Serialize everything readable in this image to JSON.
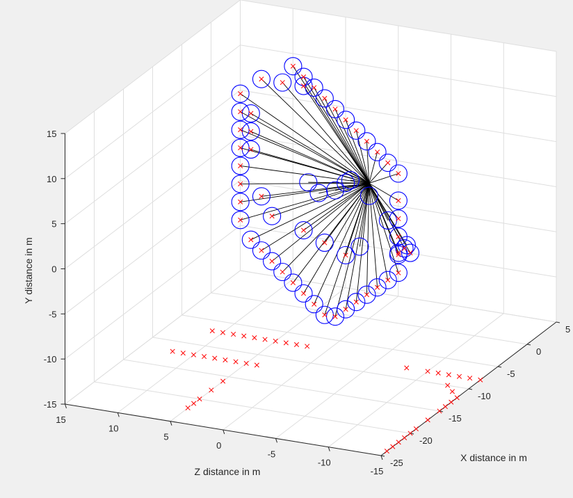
{
  "chart_data": {
    "type": "scatter",
    "title": "",
    "xlabel": "X distance in m",
    "ylabel": "Y distance in m",
    "zlabel": "Z distance in m",
    "xlim": [
      -25,
      5
    ],
    "ylim": [
      -15,
      15
    ],
    "zlim": [
      -15,
      15
    ],
    "xticks": [
      -25,
      -20,
      -15,
      -10,
      -5,
      0,
      5
    ],
    "yticks": [
      -15,
      -10,
      -5,
      0,
      5,
      10,
      15
    ],
    "zticks": [
      -15,
      -10,
      -5,
      0,
      5,
      10,
      15
    ],
    "xtick_labels": [
      "-25",
      "-20",
      "-15",
      "-10",
      "-5",
      "0",
      "5"
    ],
    "ytick_labels": [
      "-15",
      "-10",
      "-5",
      "0",
      "5",
      "10",
      "15"
    ],
    "ztick_labels": [
      "-15",
      "-10",
      "-5",
      "0",
      "5",
      "10",
      "15"
    ],
    "grid": true,
    "center": [
      0,
      0,
      0
    ],
    "colors": {
      "background": "#f0f0f0",
      "axes_bg": "#ffffff",
      "circles": "#0000ff",
      "crosses": "#ff0000",
      "lines": "#000000"
    },
    "series": [
      {
        "marker": "circle",
        "color": "#0000ff",
        "points": [
          [
            -4,
            14,
            5
          ],
          [
            -4,
            13,
            4
          ],
          [
            -4,
            12,
            3
          ],
          [
            -4,
            11,
            2
          ],
          [
            -4,
            10,
            1
          ],
          [
            -4,
            9,
            0
          ],
          [
            -4,
            8,
            -1
          ],
          [
            -4,
            7,
            -2
          ],
          [
            -4,
            6,
            -3
          ],
          [
            -4,
            5,
            -4
          ],
          [
            -4,
            4,
            -5
          ],
          [
            -4,
            12,
            8
          ],
          [
            -4,
            12,
            6
          ],
          [
            -4,
            12,
            4
          ],
          [
            -4,
            10,
            10
          ],
          [
            -4,
            8,
            10
          ],
          [
            -4,
            6,
            10
          ],
          [
            -4,
            4,
            10
          ],
          [
            -4,
            2,
            10
          ],
          [
            -4,
            0,
            10
          ],
          [
            -4,
            -2,
            10
          ],
          [
            -4,
            8,
            9
          ],
          [
            -4,
            6,
            9
          ],
          [
            -4,
            4,
            9
          ],
          [
            -4,
            -4,
            10
          ],
          [
            -4,
            -6,
            9
          ],
          [
            -4,
            -7,
            8
          ],
          [
            -4,
            -8,
            7
          ],
          [
            -4,
            -9,
            6
          ],
          [
            -4,
            -10,
            5
          ],
          [
            -4,
            -11,
            4
          ],
          [
            -4,
            -12,
            3
          ],
          [
            -4,
            -13,
            2
          ],
          [
            -4,
            -13,
            1
          ],
          [
            -4,
            -12,
            0
          ],
          [
            -4,
            -11,
            -1
          ],
          [
            -4,
            -10,
            -2
          ],
          [
            -4,
            -9,
            -3
          ],
          [
            -4,
            -8,
            -4
          ],
          [
            -4,
            -7,
            -5
          ],
          [
            -4,
            -5,
            -5
          ],
          [
            -4,
            -3,
            -5
          ],
          [
            -4,
            -1,
            -5
          ],
          [
            -4,
            1,
            -5
          ],
          [
            -4,
            -1,
            8
          ],
          [
            -4,
            -3,
            7
          ],
          [
            -4,
            -4,
            4
          ],
          [
            -4,
            -5,
            2
          ],
          [
            -4,
            -6,
            0
          ],
          [
            -7,
            -3,
            -3
          ],
          [
            -4,
            1,
            1
          ],
          [
            -4,
            2,
            0
          ],
          [
            -5,
            2,
            3
          ],
          [
            -5,
            3,
            -1
          ],
          [
            -5,
            1,
            2
          ],
          [
            -9,
            4,
            -5
          ],
          [
            -13,
            4,
            -9
          ],
          [
            -17,
            4,
            -13
          ],
          [
            -20,
            5,
            -15
          ],
          [
            -21,
            6,
            -15
          ],
          [
            -22,
            6,
            -15
          ]
        ]
      },
      {
        "marker": "x",
        "color": "#ff0000",
        "points": [
          [
            -4,
            14,
            5
          ],
          [
            -4,
            13,
            4
          ],
          [
            -4,
            12,
            3
          ],
          [
            -4,
            11,
            2
          ],
          [
            -4,
            10,
            1
          ],
          [
            -4,
            9,
            0
          ],
          [
            -4,
            8,
            -1
          ],
          [
            -4,
            7,
            -2
          ],
          [
            -4,
            6,
            -3
          ],
          [
            -4,
            5,
            -4
          ],
          [
            -4,
            4,
            -5
          ],
          [
            -4,
            12,
            8
          ],
          [
            -4,
            12,
            6
          ],
          [
            -4,
            12,
            4
          ],
          [
            -4,
            10,
            10
          ],
          [
            -4,
            8,
            10
          ],
          [
            -4,
            6,
            10
          ],
          [
            -4,
            4,
            10
          ],
          [
            -4,
            2,
            10
          ],
          [
            -4,
            0,
            10
          ],
          [
            -4,
            -2,
            10
          ],
          [
            -4,
            8,
            9
          ],
          [
            -4,
            6,
            9
          ],
          [
            -4,
            4,
            9
          ],
          [
            -4,
            -4,
            10
          ],
          [
            -4,
            -6,
            9
          ],
          [
            -4,
            -7,
            8
          ],
          [
            -4,
            -8,
            7
          ],
          [
            -4,
            -9,
            6
          ],
          [
            -4,
            -10,
            5
          ],
          [
            -4,
            -11,
            4
          ],
          [
            -4,
            -12,
            3
          ],
          [
            -4,
            -13,
            2
          ],
          [
            -4,
            -13,
            1
          ],
          [
            -4,
            -12,
            0
          ],
          [
            -4,
            -11,
            -1
          ],
          [
            -4,
            -10,
            -2
          ],
          [
            -4,
            -9,
            -3
          ],
          [
            -4,
            -8,
            -4
          ],
          [
            -4,
            -7,
            -5
          ],
          [
            -4,
            -5,
            -5
          ],
          [
            -4,
            -3,
            -5
          ],
          [
            -4,
            -1,
            -5
          ],
          [
            -4,
            1,
            -5
          ],
          [
            -4,
            -1,
            8
          ],
          [
            -4,
            -3,
            7
          ],
          [
            -4,
            -4,
            4
          ],
          [
            -4,
            -5,
            2
          ],
          [
            -4,
            -6,
            0
          ],
          [
            -20,
            5,
            -15
          ],
          [
            -21,
            6,
            -15
          ],
          [
            -22,
            6,
            -15
          ],
          [
            -7,
            -15,
            11
          ],
          [
            -7,
            -15,
            10
          ],
          [
            -7,
            -15,
            9
          ],
          [
            -7,
            -15,
            8
          ],
          [
            -7,
            -15,
            7
          ],
          [
            -7,
            -15,
            6
          ],
          [
            -7,
            -15,
            5
          ],
          [
            -7,
            -15,
            4
          ],
          [
            -7,
            -15,
            3
          ],
          [
            -7,
            -15,
            2
          ],
          [
            -12,
            -15,
            12
          ],
          [
            -12,
            -15,
            11
          ],
          [
            -12,
            -15,
            10
          ],
          [
            -12,
            -15,
            9
          ],
          [
            -12,
            -15,
            8
          ],
          [
            -12,
            -15,
            7
          ],
          [
            -12,
            -15,
            6
          ],
          [
            -12,
            -15,
            5
          ],
          [
            -12,
            -15,
            4
          ],
          [
            -16,
            -15,
            5
          ],
          [
            -18,
            -15,
            5
          ],
          [
            -20,
            -15,
            5
          ],
          [
            -21,
            -15,
            5
          ],
          [
            -22,
            -15,
            5
          ],
          [
            -8,
            -15,
            -8
          ],
          [
            -8,
            -15,
            -10
          ],
          [
            -8,
            -15,
            -11
          ],
          [
            -8,
            -15,
            -12
          ],
          [
            -8,
            -15,
            -13
          ],
          [
            -8,
            -15,
            -14
          ],
          [
            -8,
            -15,
            -15
          ],
          [
            -10,
            -15,
            -13
          ],
          [
            -11,
            -15,
            -14
          ],
          [
            -12,
            -15,
            -15
          ],
          [
            -13,
            -15,
            -15
          ],
          [
            -14,
            -15,
            -15
          ],
          [
            -15,
            -15,
            -15
          ],
          [
            -17,
            -15,
            -15
          ],
          [
            -19,
            -15,
            -15
          ],
          [
            -20,
            -15,
            -15
          ],
          [
            -21,
            -15,
            -15
          ],
          [
            -22,
            -15,
            -15
          ],
          [
            -23,
            -15,
            -15
          ],
          [
            -24,
            -15,
            -15
          ]
        ]
      }
    ]
  }
}
